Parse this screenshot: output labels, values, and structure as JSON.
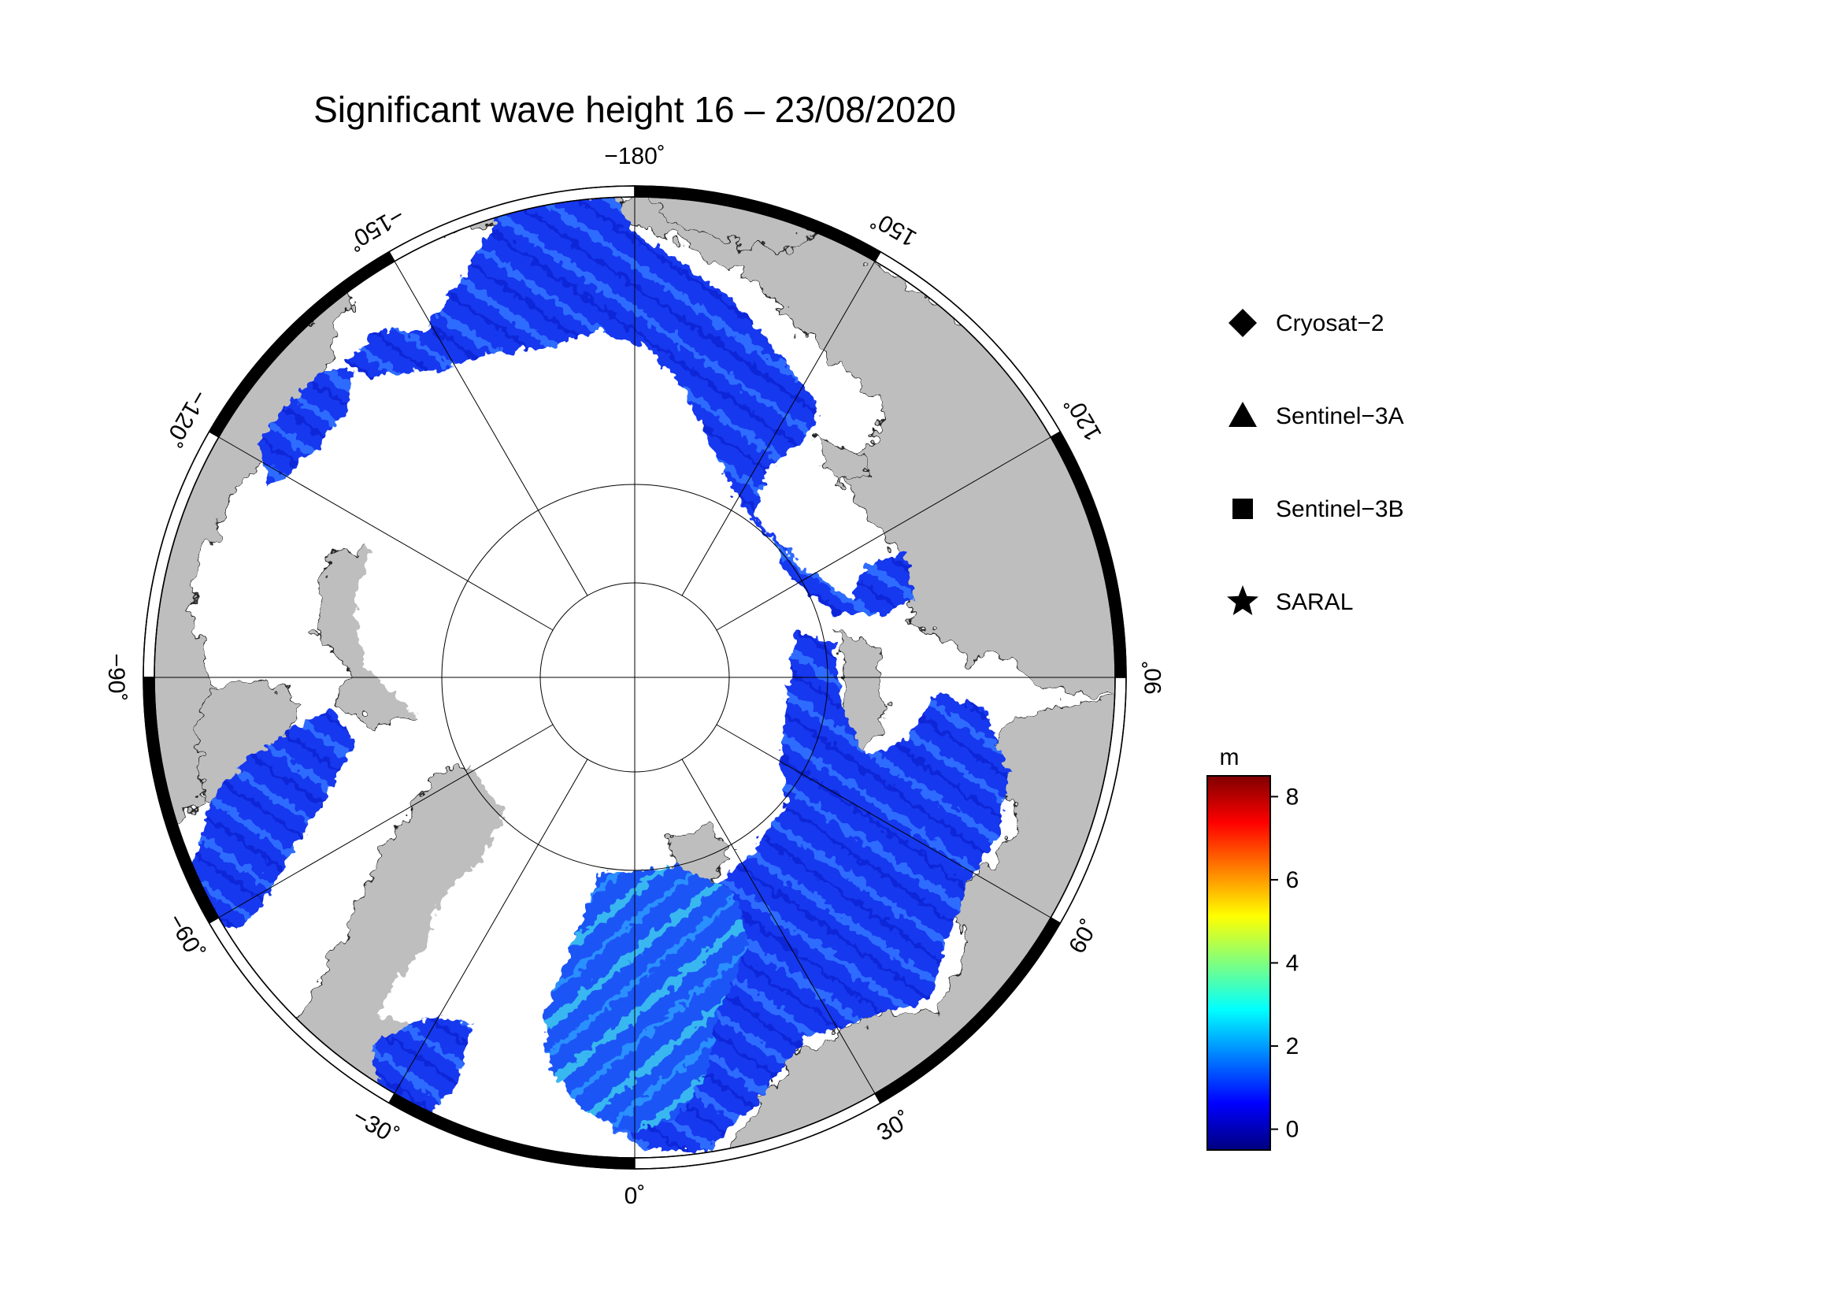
{
  "title": "Significant wave height 16 – 23/08/2020",
  "frame_labels": [
    {
      "lon": -180,
      "text": "−180˚"
    },
    {
      "lon": -150,
      "text": "−150˚"
    },
    {
      "lon": -120,
      "text": "−120˚"
    },
    {
      "lon": -90,
      "text": "−90˚"
    },
    {
      "lon": -60,
      "text": "−60˚"
    },
    {
      "lon": -30,
      "text": "−30˚"
    },
    {
      "lon": 0,
      "text": "0˚"
    },
    {
      "lon": 30,
      "text": "30˚"
    },
    {
      "lon": 60,
      "text": "60˚"
    },
    {
      "lon": 90,
      "text": "90˚"
    },
    {
      "lon": 120,
      "text": "120˚"
    },
    {
      "lon": 150,
      "text": "150˚"
    }
  ],
  "legend": [
    {
      "symbol": "diamond-icon",
      "label": "Cryosat−2"
    },
    {
      "symbol": "triangle-icon",
      "label": "Sentinel−3A"
    },
    {
      "symbol": "square-icon",
      "label": "Sentinel−3B"
    },
    {
      "symbol": "star-icon",
      "label": "SARAL"
    }
  ],
  "colorbar": {
    "unit": "m",
    "min": -0.5,
    "max": 8.5,
    "ticks": [
      {
        "value": 0,
        "label": "0"
      },
      {
        "value": 2,
        "label": "2"
      },
      {
        "value": 4,
        "label": "4"
      },
      {
        "value": 6,
        "label": "6"
      },
      {
        "value": 8,
        "label": "8"
      }
    ],
    "colors": [
      "#00007f",
      "#0000ff",
      "#007fff",
      "#00ffff",
      "#7fff7f",
      "#ffff00",
      "#ff7f00",
      "#ff0000",
      "#7f0000"
    ]
  },
  "map_colors": {
    "land": "#bebebe",
    "sea_ice": "#ffffff",
    "ocean_wave": "#1a3cf0",
    "ocean_wave_high": "#3aa0ff",
    "frame_dark": "#000000",
    "frame_light": "#ffffff",
    "graticule": "#000000"
  }
}
